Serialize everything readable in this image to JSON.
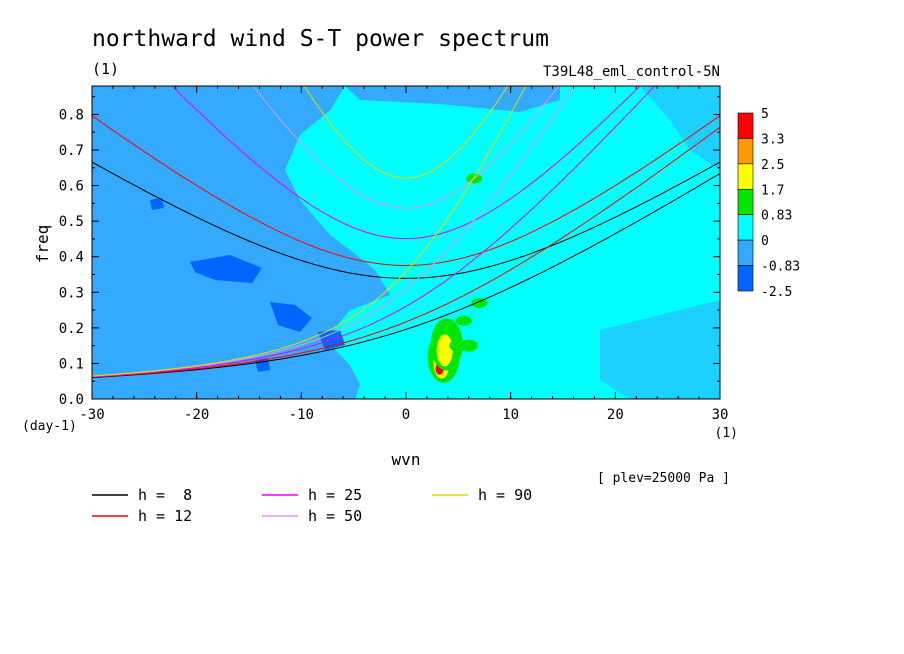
{
  "chart_data": {
    "type": "heatmap",
    "title": "northward wind S-T power spectrum",
    "title_unit": "(1)",
    "subtitle_right": "T39L48_eml_control-5N",
    "xlabel": "wvn",
    "x_unit": "(1)",
    "ylabel": "freq",
    "y_unit": "(day-1)",
    "xlim": [
      -30,
      30
    ],
    "ylim": [
      0.0,
      0.88
    ],
    "x_ticks": [
      "-30",
      "-20",
      "-10",
      "0",
      "10",
      "20",
      "30"
    ],
    "y_ticks": [
      "0.0",
      "0.1",
      "0.2",
      "0.3",
      "0.4",
      "0.5",
      "0.6",
      "0.7",
      "0.8"
    ],
    "level_note": "[ plev=25000 Pa ]",
    "colorbar": {
      "labels": [
        "5",
        "3.3",
        "2.5",
        "1.7",
        "0.83",
        "0",
        "-0.83",
        "-2.5"
      ],
      "colors": [
        "#ff0000",
        "#ff9900",
        "#ffff00",
        "#00e600",
        "#00ffff",
        "#33aaff",
        "#0066ff"
      ]
    },
    "dispersion_curves": [
      {
        "name": "h =  8",
        "h": 8,
        "color": "#000000"
      },
      {
        "name": "h = 12",
        "h": 12,
        "color": "#ff0000"
      },
      {
        "name": "h = 25",
        "h": 25,
        "color": "#ee00ee"
      },
      {
        "name": "h = 50",
        "h": 50,
        "color": "#dd99dd"
      },
      {
        "name": "h = 90",
        "h": 90,
        "color": "#dddd00"
      }
    ],
    "hotspots": [
      {
        "x": 3.2,
        "y": 0.085,
        "value": 5
      },
      {
        "x": 3.5,
        "y": 0.12,
        "value": 2.5
      },
      {
        "x": 5.0,
        "y": 0.15,
        "value": 1.7
      },
      {
        "x": 6.0,
        "y": 0.15,
        "value": 1.7
      },
      {
        "x": 5.5,
        "y": 0.22,
        "value": 0.83
      },
      {
        "x": 7.0,
        "y": 0.27,
        "value": 0.83
      },
      {
        "x": 6.5,
        "y": 0.62,
        "value": 0.83
      }
    ]
  }
}
